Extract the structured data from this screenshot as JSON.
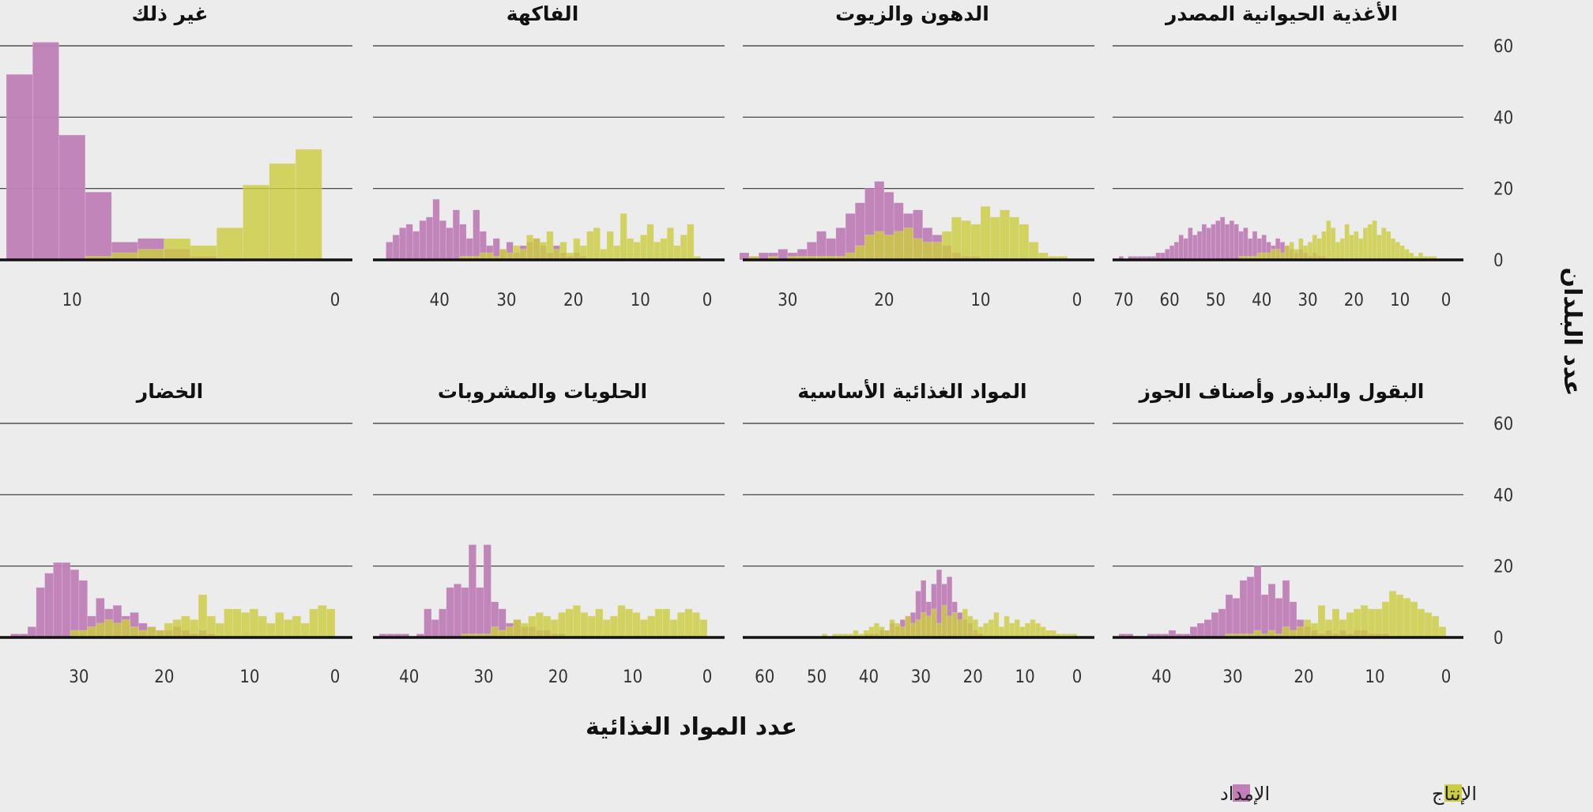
{
  "colors": {
    "supply": "#c07fb7",
    "production": "#cccc3f",
    "background": "#ececec",
    "grid": "#333333",
    "baseline": "#111111"
  },
  "axis": {
    "xlabel": "عدد المواد الغذائية",
    "ylabel": "عدد البلدان",
    "y_ticks": [
      0,
      20,
      40,
      60
    ]
  },
  "legend": {
    "production_label": "الإنتاج",
    "supply_label": "الإمداد",
    "placement": "bottom-right"
  },
  "chart_data": [
    {
      "type": "bar",
      "title": "الأغذية الحيوانية المصدر",
      "x_direction": "reversed",
      "xlim": [
        0,
        71
      ],
      "ylim": [
        0,
        60
      ],
      "bin_width": 1,
      "x_ticks": [
        0,
        10,
        20,
        30,
        40,
        50,
        60,
        70
      ],
      "series": [
        {
          "name": "الإنتاج",
          "x": [
            2,
            3,
            4,
            5,
            6,
            7,
            8,
            9,
            10,
            11,
            12,
            13,
            14,
            15,
            16,
            17,
            18,
            19,
            20,
            21,
            22,
            23,
            24,
            25,
            26,
            27,
            28,
            29,
            30,
            31,
            32,
            33,
            34,
            35,
            36,
            37,
            38,
            39,
            40,
            41,
            42,
            43,
            44
          ],
          "values": [
            1,
            1,
            1,
            2,
            1,
            2,
            3,
            4,
            5,
            6,
            8,
            9,
            7,
            11,
            10,
            9,
            6,
            8,
            7,
            10,
            6,
            5,
            9,
            11,
            8,
            6,
            7,
            5,
            4,
            6,
            3,
            5,
            4,
            2,
            3,
            3,
            2,
            2,
            2,
            1,
            1,
            1,
            1
          ]
        },
        {
          "name": "الإمداد",
          "x": [
            26,
            27,
            28,
            29,
            30,
            31,
            32,
            33,
            34,
            35,
            36,
            37,
            38,
            39,
            40,
            41,
            42,
            43,
            44,
            45,
            46,
            47,
            48,
            49,
            50,
            51,
            52,
            53,
            54,
            55,
            56,
            57,
            58,
            59,
            60,
            61,
            62,
            63,
            64,
            65,
            66,
            67,
            68,
            69,
            70
          ],
          "values": [
            1,
            1,
            2,
            1,
            2,
            3,
            2,
            3,
            4,
            5,
            6,
            4,
            5,
            7,
            6,
            8,
            6,
            9,
            8,
            10,
            11,
            10,
            12,
            11,
            10,
            9,
            10,
            8,
            7,
            9,
            6,
            7,
            5,
            4,
            3,
            2,
            2,
            1,
            1,
            1,
            1,
            1,
            1,
            0,
            1
          ]
        }
      ]
    },
    {
      "type": "bar",
      "title": "الدهون والزيوت",
      "x_direction": "reversed",
      "xlim": [
        0,
        34
      ],
      "ylim": [
        0,
        60
      ],
      "bin_width": 1,
      "x_ticks": [
        0,
        10,
        20,
        30
      ],
      "series": [
        {
          "name": "الإنتاج",
          "x": [
            1,
            2,
            3,
            4,
            5,
            6,
            7,
            8,
            9,
            10,
            11,
            12,
            13,
            14,
            15,
            16,
            17,
            18,
            19,
            20,
            21,
            22,
            23,
            24,
            25,
            26,
            27,
            28,
            29,
            30,
            31,
            32,
            33
          ],
          "values": [
            1,
            1,
            2,
            5,
            10,
            12,
            14,
            12,
            15,
            10,
            11,
            12,
            8,
            5,
            5,
            6,
            9,
            8,
            7,
            8,
            7,
            4,
            2,
            1,
            1,
            1,
            1,
            1,
            1,
            0,
            1,
            0,
            1
          ]
        },
        {
          "name": "الإمداد",
          "x": [
            10,
            11,
            12,
            13,
            14,
            15,
            16,
            17,
            18,
            19,
            20,
            21,
            22,
            23,
            24,
            25,
            26,
            27,
            28,
            29,
            30,
            31,
            32,
            33,
            34
          ],
          "values": [
            1,
            1,
            2,
            4,
            7,
            9,
            14,
            13,
            16,
            19,
            22,
            20,
            16,
            13,
            9,
            6,
            8,
            5,
            3,
            2,
            3,
            2,
            2,
            1,
            2
          ]
        }
      ]
    },
    {
      "type": "bar",
      "title": "الفاكهة",
      "x_direction": "reversed",
      "xlim": [
        0,
        49
      ],
      "ylim": [
        0,
        60
      ],
      "bin_width": 1,
      "x_ticks": [
        0,
        10,
        20,
        30,
        40
      ],
      "series": [
        {
          "name": "الإنتاج",
          "x": [
            1,
            2,
            3,
            4,
            5,
            6,
            7,
            8,
            9,
            10,
            11,
            12,
            13,
            14,
            15,
            16,
            17,
            18,
            19,
            20,
            21,
            22,
            23,
            24,
            25,
            26,
            27,
            28,
            29,
            30,
            31,
            32,
            33,
            34,
            35,
            36
          ],
          "values": [
            1,
            10,
            7,
            4,
            9,
            6,
            5,
            10,
            7,
            5,
            6,
            13,
            4,
            8,
            3,
            9,
            8,
            4,
            6,
            2,
            5,
            3,
            8,
            5,
            6,
            7,
            3,
            4,
            2,
            3,
            1,
            2,
            2,
            1,
            1,
            1
          ]
        },
        {
          "name": "الإمداد",
          "x": [
            18,
            19,
            20,
            21,
            22,
            23,
            24,
            25,
            26,
            27,
            28,
            29,
            30,
            31,
            32,
            33,
            34,
            35,
            36,
            37,
            38,
            39,
            40,
            41,
            42,
            43,
            44,
            45,
            46,
            47
          ],
          "values": [
            1,
            2,
            1,
            2,
            4,
            2,
            4,
            6,
            5,
            4,
            2,
            5,
            3,
            6,
            4,
            8,
            14,
            6,
            10,
            14,
            9,
            11,
            17,
            12,
            11,
            8,
            10,
            9,
            7,
            5
          ]
        }
      ]
    },
    {
      "type": "bar",
      "title": "غير ذلك",
      "x_direction": "reversed",
      "xlim": [
        0,
        12.5
      ],
      "ylim": [
        0,
        60
      ],
      "bin_width": 1,
      "x_ticks": [
        0,
        10
      ],
      "series": [
        {
          "name": "الإنتاج",
          "x": [
            0.5,
            1.5,
            2.5,
            3.5,
            4.5,
            5.5,
            6.5,
            7.5,
            8.5
          ],
          "values": [
            31,
            27,
            21,
            9,
            4,
            6,
            3,
            2,
            1
          ]
        },
        {
          "name": "الإمداد",
          "x": [
            4.5,
            5.5,
            6.5,
            7.5,
            8.5,
            9.5,
            10.5,
            11.5
          ],
          "values": [
            1,
            3,
            6,
            5,
            19,
            35,
            61,
            52
          ]
        }
      ]
    },
    {
      "type": "bar",
      "title": "البقول والبذور وأصناف الجوز",
      "x_direction": "reversed",
      "xlim": [
        0,
        46
      ],
      "ylim": [
        0,
        60
      ],
      "bin_width": 1,
      "x_ticks": [
        0,
        10,
        20,
        30,
        40
      ],
      "series": [
        {
          "name": "الإنتاج",
          "x": [
            0,
            1,
            2,
            3,
            4,
            5,
            6,
            7,
            8,
            9,
            10,
            11,
            12,
            13,
            14,
            15,
            16,
            17,
            18,
            19,
            20,
            21,
            22,
            23,
            24,
            25,
            26,
            27,
            28,
            29,
            30
          ],
          "values": [
            3,
            6,
            7,
            8,
            10,
            11,
            12,
            13,
            10,
            8,
            8,
            9,
            8,
            7,
            5,
            8,
            5,
            9,
            4,
            5,
            3,
            2,
            3,
            1,
            2,
            1,
            2,
            1,
            1,
            1,
            1
          ]
        },
        {
          "name": "الإمداد",
          "x": [
            8,
            9,
            10,
            11,
            12,
            13,
            14,
            15,
            16,
            17,
            18,
            19,
            20,
            21,
            22,
            23,
            24,
            25,
            26,
            27,
            28,
            29,
            30,
            31,
            32,
            33,
            34,
            35,
            36,
            37,
            38,
            39,
            40,
            41,
            42,
            43,
            44,
            45
          ],
          "values": [
            1,
            1,
            1,
            2,
            2,
            1,
            2,
            1,
            2,
            1,
            2,
            3,
            5,
            10,
            16,
            11,
            15,
            12,
            20,
            17,
            16,
            11,
            12,
            8,
            7,
            5,
            4,
            3,
            1,
            1,
            2,
            1,
            1,
            1,
            0,
            0,
            1,
            1
          ]
        }
      ]
    },
    {
      "type": "bar",
      "title": "المواد الغذائية الأساسية",
      "x_direction": "reversed",
      "xlim": [
        0,
        63
      ],
      "ylim": [
        0,
        60
      ],
      "bin_width": 1,
      "x_ticks": [
        0,
        10,
        20,
        30,
        40,
        50,
        60
      ],
      "series": [
        {
          "name": "الإنتاج",
          "x": [
            0,
            1,
            2,
            3,
            4,
            5,
            6,
            7,
            8,
            9,
            10,
            11,
            12,
            13,
            14,
            15,
            16,
            17,
            18,
            19,
            20,
            21,
            22,
            23,
            24,
            25,
            26,
            27,
            28,
            29,
            30,
            31,
            32,
            33,
            34,
            35,
            36,
            37,
            38,
            39,
            40,
            41,
            42,
            43,
            44,
            45,
            46,
            47,
            48
          ],
          "values": [
            1,
            1,
            1,
            1,
            2,
            2,
            3,
            4,
            5,
            4,
            3,
            5,
            4,
            6,
            3,
            7,
            5,
            4,
            3,
            5,
            6,
            8,
            5,
            7,
            6,
            9,
            4,
            8,
            6,
            7,
            5,
            4,
            6,
            3,
            4,
            5,
            2,
            3,
            4,
            3,
            2,
            1,
            2,
            1,
            1,
            1,
            1,
            0,
            1
          ]
        },
        {
          "name": "الإمداد",
          "x": [
            18,
            19,
            20,
            21,
            22,
            23,
            24,
            25,
            26,
            27,
            28,
            29,
            30,
            31,
            32,
            33,
            34,
            35,
            36,
            37,
            38,
            39,
            40
          ],
          "values": [
            1,
            2,
            4,
            5,
            7,
            10,
            17,
            15,
            19,
            15,
            10,
            16,
            13,
            7,
            6,
            5,
            3,
            4,
            2,
            2,
            1,
            1,
            1
          ]
        }
      ]
    },
    {
      "type": "bar",
      "title": "الحلويات والمشروبات",
      "x_direction": "reversed",
      "xlim": [
        0,
        44
      ],
      "ylim": [
        0,
        60
      ],
      "bin_width": 1,
      "x_ticks": [
        0,
        10,
        20,
        30,
        40
      ],
      "series": [
        {
          "name": "الإنتاج",
          "x": [
            0,
            1,
            2,
            3,
            4,
            5,
            6,
            7,
            8,
            9,
            10,
            11,
            12,
            13,
            14,
            15,
            16,
            17,
            18,
            19,
            20,
            21,
            22,
            23,
            24,
            25,
            26,
            27,
            28,
            29,
            30,
            31,
            32
          ],
          "values": [
            5,
            7,
            8,
            7,
            5,
            8,
            8,
            6,
            5,
            7,
            8,
            9,
            6,
            5,
            8,
            6,
            7,
            9,
            8,
            7,
            5,
            6,
            7,
            6,
            4,
            5,
            3,
            2,
            3,
            1,
            1,
            1,
            1
          ]
        },
        {
          "name": "الإمداد",
          "x": [
            19,
            20,
            21,
            22,
            23,
            24,
            25,
            26,
            27,
            28,
            29,
            30,
            31,
            32,
            33,
            34,
            35,
            36,
            37,
            38,
            39,
            40,
            41,
            42,
            43
          ],
          "values": [
            1,
            1,
            2,
            2,
            3,
            3,
            5,
            4,
            8,
            10,
            26,
            14,
            26,
            14,
            15,
            14,
            8,
            5,
            8,
            1,
            0,
            1,
            1,
            1,
            1
          ]
        }
      ]
    },
    {
      "type": "bar",
      "title": "الخضار",
      "x_direction": "reversed",
      "xlim": [
        0,
        38.5
      ],
      "ylim": [
        0,
        60
      ],
      "bin_width": 1,
      "x_ticks": [
        0,
        10,
        20,
        30
      ],
      "series": [
        {
          "name": "الإنتاج",
          "x": [
            0,
            1,
            2,
            3,
            4,
            5,
            6,
            7,
            8,
            9,
            10,
            11,
            12,
            13,
            14,
            15,
            16,
            17,
            18,
            19,
            20,
            21,
            22,
            23,
            24,
            25,
            26,
            27,
            28,
            29,
            30
          ],
          "values": [
            8,
            9,
            8,
            4,
            6,
            5,
            7,
            4,
            6,
            8,
            7,
            8,
            8,
            4,
            6,
            12,
            5,
            6,
            5,
            4,
            2,
            3,
            2,
            3,
            5,
            4,
            5,
            4,
            3,
            2,
            2
          ]
        },
        {
          "name": "الإمداد",
          "x": [
            14,
            15,
            16,
            17,
            18,
            19,
            20,
            21,
            22,
            23,
            24,
            25,
            26,
            27,
            28,
            29,
            30,
            31,
            32,
            33,
            34,
            35,
            36,
            37
          ],
          "values": [
            1,
            2,
            1,
            2,
            3,
            2,
            2,
            3,
            4,
            7,
            6,
            9,
            8,
            11,
            6,
            16,
            19,
            21,
            21,
            18,
            14,
            3,
            1,
            1
          ]
        }
      ]
    }
  ]
}
